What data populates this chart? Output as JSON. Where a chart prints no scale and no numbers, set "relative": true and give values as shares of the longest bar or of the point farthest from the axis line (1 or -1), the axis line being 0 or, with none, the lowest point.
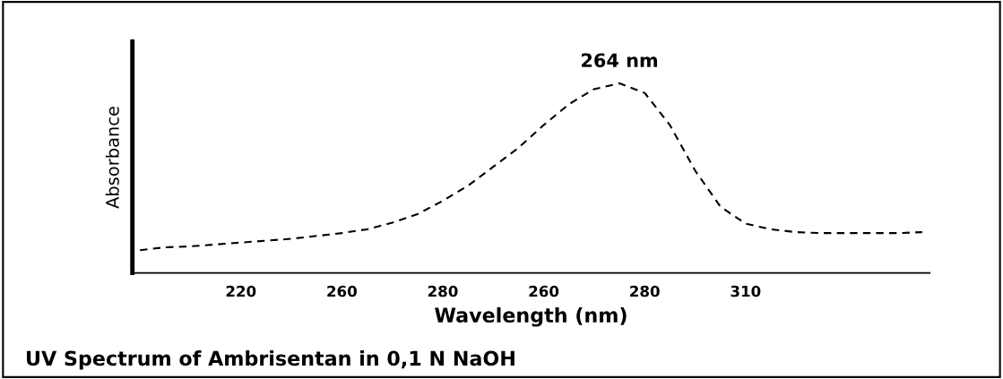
{
  "chart_data": {
    "type": "line",
    "title": "UV Spectrum of Ambrisentan in 0,1 N NaOH",
    "xlabel": "Wavelength (nm)",
    "ylabel": "Absorbance",
    "relative": true,
    "line_style": "dashed",
    "marker": "none",
    "grid": false,
    "legend": false,
    "categories": [
      null,
      null,
      null,
      null,
      "220",
      null,
      null,
      null,
      "260",
      null,
      null,
      null,
      "280",
      null,
      null,
      null,
      "260",
      null,
      null,
      null,
      "280",
      null,
      null,
      null,
      "310",
      null,
      null,
      null,
      null,
      null,
      null,
      null
    ],
    "series": [
      {
        "color": "#000000",
        "values": [
          0.12,
          0.135,
          0.14,
          0.15,
          0.16,
          0.17,
          0.18,
          0.195,
          0.21,
          0.23,
          0.265,
          0.31,
          0.38,
          0.46,
          0.56,
          0.66,
          0.78,
          0.89,
          0.97,
          1.0,
          0.95,
          0.78,
          0.54,
          0.35,
          0.26,
          0.23,
          0.215,
          0.21,
          0.21,
          0.21,
          0.21,
          0.215
        ]
      }
    ],
    "annotations": [
      "264 nm"
    ]
  }
}
